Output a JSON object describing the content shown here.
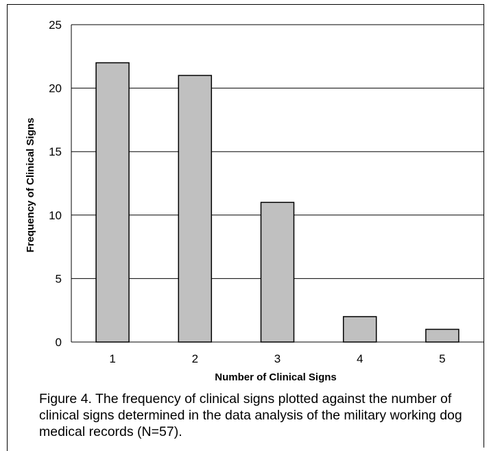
{
  "chart_data": {
    "type": "bar",
    "title": "",
    "xlabel": "Number of Clinical Signs",
    "ylabel": "Frequency of Clinical Signs",
    "categories": [
      "1",
      "2",
      "3",
      "4",
      "5"
    ],
    "values": [
      22,
      21,
      11,
      2,
      1
    ],
    "ylim": [
      0,
      25
    ],
    "yticks": [
      "0",
      "5",
      "10",
      "15",
      "20",
      "25"
    ],
    "grid": true,
    "legend": "none",
    "bar_color": "#c0c0c0",
    "bar_outline": "#000000"
  },
  "caption": "Figure 4. The frequency of clinical signs plotted against the number of clinical signs determined in the data analysis of the military working dog medical records (N=57)."
}
